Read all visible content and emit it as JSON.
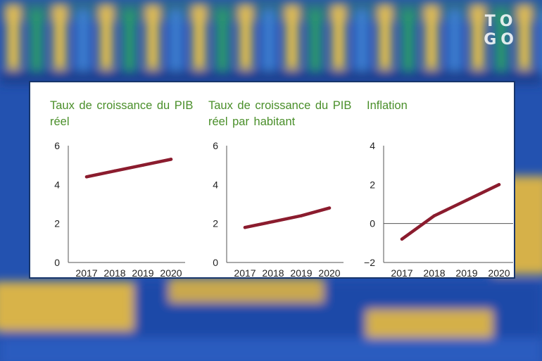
{
  "watermark": {
    "line1": "TO",
    "line2": "GO"
  },
  "colors": {
    "title": "#4a8f2a",
    "series": "#8b1c2e",
    "axis": "#555555",
    "zero_line": "#555555"
  },
  "chart_data": [
    {
      "type": "line",
      "title_line1": "Taux de croissance du PIB",
      "title_line2": "réel",
      "x": [
        "2017",
        "2018",
        "2019",
        "2020"
      ],
      "series": [
        {
          "name": "Taux de croissance du PIB réel",
          "values": [
            4.4,
            4.7,
            5.0,
            5.3
          ]
        }
      ],
      "ylim": [
        0,
        6
      ],
      "yticks": [
        {
          "value": 0,
          "label": "0"
        },
        {
          "value": 2,
          "label": "2"
        },
        {
          "value": 4,
          "label": "4"
        },
        {
          "value": 6,
          "label": "6"
        }
      ],
      "zero_line": false,
      "xlabel": "",
      "ylabel": ""
    },
    {
      "type": "line",
      "title_line1": "Taux de croissance du PIB",
      "title_line2": "réel par habitant",
      "x": [
        "2017",
        "2018",
        "2019",
        "2020"
      ],
      "series": [
        {
          "name": "Taux de croissance du PIB réel par habitant",
          "values": [
            1.8,
            2.1,
            2.4,
            2.8
          ]
        }
      ],
      "ylim": [
        0,
        6
      ],
      "yticks": [
        {
          "value": 0,
          "label": "0"
        },
        {
          "value": 2,
          "label": "2"
        },
        {
          "value": 4,
          "label": "4"
        },
        {
          "value": 6,
          "label": "6"
        }
      ],
      "zero_line": false,
      "xlabel": "",
      "ylabel": ""
    },
    {
      "type": "line",
      "title_line1": "Inflation",
      "title_line2": "",
      "x": [
        "2017",
        "2018",
        "2019",
        "2020"
      ],
      "series": [
        {
          "name": "Inflation",
          "values": [
            -0.8,
            0.4,
            1.2,
            2.0
          ]
        }
      ],
      "ylim": [
        -2,
        4
      ],
      "yticks": [
        {
          "value": -2,
          "label": "−2"
        },
        {
          "value": 0,
          "label": "0"
        },
        {
          "value": 2,
          "label": "2"
        },
        {
          "value": 4,
          "label": "4"
        }
      ],
      "zero_line": true,
      "xlabel": "",
      "ylabel": ""
    }
  ]
}
